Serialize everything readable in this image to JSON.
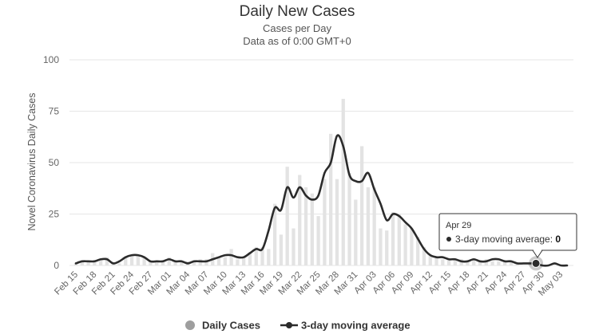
{
  "chart_data": {
    "type": "bar+line",
    "title": "Daily New Cases",
    "subtitle_lines": [
      "Cases per Day",
      "Data as of 0:00 GMT+0"
    ],
    "ylabel": "Novel Coronavirus Daily Cases",
    "xlabel": "",
    "ylim": [
      0,
      100
    ],
    "y_ticks": [
      0,
      25,
      50,
      75,
      100
    ],
    "grid": true,
    "legend_position": "bottom-center",
    "dates": [
      "Feb 15",
      "Feb 16",
      "Feb 17",
      "Feb 18",
      "Feb 19",
      "Feb 20",
      "Feb 21",
      "Feb 22",
      "Feb 23",
      "Feb 24",
      "Feb 25",
      "Feb 26",
      "Feb 27",
      "Feb 28",
      "Feb 29",
      "Mar 01",
      "Mar 02",
      "Mar 03",
      "Mar 04",
      "Mar 05",
      "Mar 06",
      "Mar 07",
      "Mar 08",
      "Mar 09",
      "Mar 10",
      "Mar 11",
      "Mar 12",
      "Mar 13",
      "Mar 14",
      "Mar 15",
      "Mar 16",
      "Mar 17",
      "Mar 18",
      "Mar 19",
      "Mar 20",
      "Mar 21",
      "Mar 22",
      "Mar 23",
      "Mar 24",
      "Mar 25",
      "Mar 26",
      "Mar 27",
      "Mar 28",
      "Mar 29",
      "Mar 30",
      "Mar 31",
      "Apr 01",
      "Apr 02",
      "Apr 03",
      "Apr 04",
      "Apr 05",
      "Apr 06",
      "Apr 07",
      "Apr 08",
      "Apr 09",
      "Apr 10",
      "Apr 11",
      "Apr 12",
      "Apr 13",
      "Apr 14",
      "Apr 15",
      "Apr 16",
      "Apr 17",
      "Apr 18",
      "Apr 19",
      "Apr 20",
      "Apr 21",
      "Apr 22",
      "Apr 23",
      "Apr 24",
      "Apr 25",
      "Apr 26",
      "Apr 27",
      "Apr 28",
      "Apr 29",
      "Apr 30",
      "May 01",
      "May 02",
      "May 03",
      "May 04"
    ],
    "x_tick_labels": [
      "Feb 15",
      "Feb 18",
      "Feb 21",
      "Feb 24",
      "Feb 27",
      "Mar 01",
      "Mar 04",
      "Mar 07",
      "Mar 10",
      "Mar 13",
      "Mar 16",
      "Mar 19",
      "Mar 22",
      "Mar 25",
      "Mar 28",
      "Mar 31",
      "Apr 03",
      "Apr 06",
      "Apr 09",
      "Apr 12",
      "Apr 15",
      "Apr 18",
      "Apr 21",
      "Apr 24",
      "Apr 27",
      "Apr 30",
      "May 03"
    ],
    "series": [
      {
        "name": "Daily Cases",
        "type": "bar",
        "color": "#e3e3e3",
        "values": [
          1,
          2,
          2,
          2,
          3,
          4,
          1,
          1,
          4,
          5,
          5,
          4,
          2,
          2,
          2,
          4,
          2,
          2,
          2,
          2,
          3,
          3,
          6,
          4,
          4,
          8,
          3,
          4,
          6,
          9,
          9,
          8,
          30,
          15,
          48,
          18,
          44,
          38,
          35,
          24,
          42,
          64,
          42,
          81,
          45,
          32,
          58,
          38,
          38,
          18,
          17,
          26,
          25,
          20,
          18,
          14,
          9,
          5,
          4,
          3,
          3,
          3,
          3,
          2,
          3,
          2,
          3,
          2,
          2,
          2,
          2,
          1,
          0,
          1,
          2,
          0,
          0,
          0,
          0,
          0
        ]
      },
      {
        "name": "3-day moving average",
        "type": "line",
        "color": "#2b2b2b",
        "values": [
          1,
          2,
          2,
          2,
          3,
          3,
          1,
          2,
          4,
          5,
          5,
          4,
          2,
          2,
          2,
          3,
          2,
          2,
          1,
          2,
          2,
          2,
          3,
          4,
          5,
          5,
          4,
          4,
          6,
          8,
          8,
          17,
          28,
          27,
          38,
          33,
          38,
          34,
          32,
          34,
          45,
          50,
          63,
          58,
          44,
          41,
          41,
          45,
          37,
          30,
          22,
          25,
          24,
          21,
          18,
          13,
          8,
          5,
          4,
          4,
          3,
          3,
          2,
          2,
          3,
          2,
          2,
          3,
          3,
          2,
          2,
          1,
          1,
          1,
          1,
          0,
          0,
          1,
          0,
          0
        ]
      }
    ],
    "tooltip": {
      "date": "Apr 29",
      "series_name": "3-day moving average",
      "label": "3-day moving average: ",
      "value": "0"
    }
  }
}
